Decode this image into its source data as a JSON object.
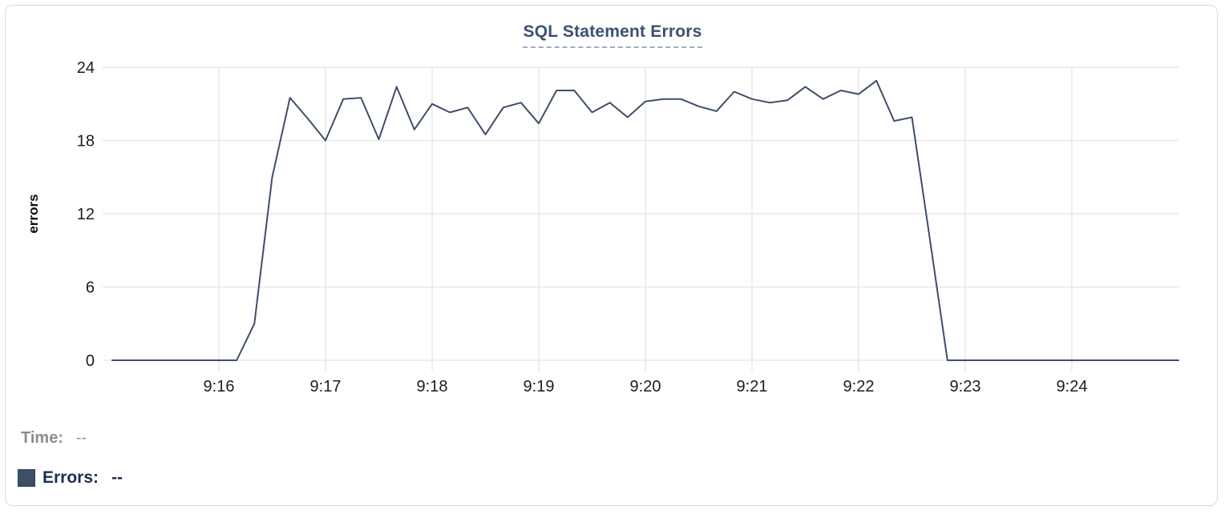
{
  "card": {
    "title": "SQL Statement Errors"
  },
  "readout": {
    "time_label": "Time:",
    "time_value": "--",
    "errors_label": "Errors:",
    "errors_value": "--"
  },
  "colors": {
    "series_line": "#3f4e6b",
    "legend_swatch": "#3d4f66",
    "title_text": "#3d5070",
    "title_underline": "#9fabc2",
    "grid": "#e8e8e8",
    "tick_text": "#1c1c1c",
    "time_label_text": "#8d8d8d",
    "errors_label_text": "#1f2e4e",
    "card_border": "#d9d9d9"
  },
  "chart_data": {
    "type": "line",
    "title": "SQL Statement Errors",
    "xlabel": "",
    "ylabel": "errors",
    "ylim": [
      0,
      24
    ],
    "y_ticks": [
      0,
      6,
      12,
      18,
      24
    ],
    "x_start": "9:15:00",
    "x_end": "9:25:00",
    "x_tick_labels": [
      "9:16",
      "9:17",
      "9:18",
      "9:19",
      "9:20",
      "9:21",
      "9:22",
      "9:23",
      "9:24"
    ],
    "grid": true,
    "legend_position": "bottom-left",
    "line_color": "#3f4e6b",
    "series": [
      {
        "name": "Errors",
        "color": "#3d4f66",
        "points": [
          [
            "9:15:00",
            0
          ],
          [
            "9:15:10",
            0
          ],
          [
            "9:15:20",
            0
          ],
          [
            "9:15:30",
            0
          ],
          [
            "9:15:40",
            0
          ],
          [
            "9:15:50",
            0
          ],
          [
            "9:16:00",
            0
          ],
          [
            "9:16:10",
            0
          ],
          [
            "9:16:20",
            3
          ],
          [
            "9:16:30",
            15
          ],
          [
            "9:16:40",
            21.5
          ],
          [
            "9:16:50",
            19.8
          ],
          [
            "9:17:00",
            18
          ],
          [
            "9:17:10",
            21.4
          ],
          [
            "9:17:20",
            21.5
          ],
          [
            "9:17:30",
            18.1
          ],
          [
            "9:17:40",
            22.4
          ],
          [
            "9:17:50",
            18.9
          ],
          [
            "9:18:00",
            21
          ],
          [
            "9:18:10",
            20.3
          ],
          [
            "9:18:20",
            20.7
          ],
          [
            "9:18:30",
            18.5
          ],
          [
            "9:18:40",
            20.7
          ],
          [
            "9:18:50",
            21.1
          ],
          [
            "9:19:00",
            19.4
          ],
          [
            "9:19:10",
            22.1
          ],
          [
            "9:19:20",
            22.1
          ],
          [
            "9:19:30",
            20.3
          ],
          [
            "9:19:40",
            21.1
          ],
          [
            "9:19:50",
            19.9
          ],
          [
            "9:20:00",
            21.2
          ],
          [
            "9:20:10",
            21.4
          ],
          [
            "9:20:20",
            21.4
          ],
          [
            "9:20:30",
            20.8
          ],
          [
            "9:20:40",
            20.4
          ],
          [
            "9:20:50",
            22.0
          ],
          [
            "9:21:00",
            21.4
          ],
          [
            "9:21:10",
            21.1
          ],
          [
            "9:21:20",
            21.3
          ],
          [
            "9:21:30",
            22.4
          ],
          [
            "9:21:40",
            21.4
          ],
          [
            "9:21:50",
            22.1
          ],
          [
            "9:22:00",
            21.8
          ],
          [
            "9:22:10",
            22.9
          ],
          [
            "9:22:20",
            19.6
          ],
          [
            "9:22:30",
            19.9
          ],
          [
            "9:22:40",
            10
          ],
          [
            "9:22:50",
            0
          ],
          [
            "9:23:00",
            0
          ],
          [
            "9:23:10",
            0
          ],
          [
            "9:23:20",
            0
          ],
          [
            "9:23:30",
            0
          ],
          [
            "9:23:40",
            0
          ],
          [
            "9:23:50",
            0
          ],
          [
            "9:24:00",
            0
          ],
          [
            "9:24:10",
            0
          ],
          [
            "9:24:20",
            0
          ],
          [
            "9:24:30",
            0
          ],
          [
            "9:24:40",
            0
          ],
          [
            "9:24:50",
            0
          ],
          [
            "9:25:00",
            0
          ]
        ]
      }
    ]
  }
}
